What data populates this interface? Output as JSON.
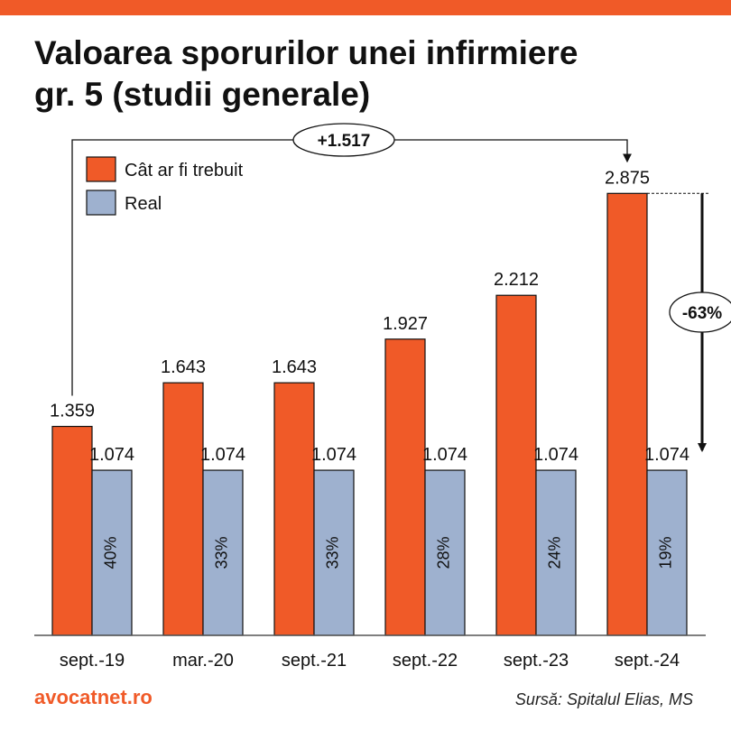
{
  "header": {
    "title_line1": "Valoarea sporurilor unei infirmiere",
    "title_line2": "gr. 5 (studii generale)"
  },
  "footer": {
    "brand": "avocatnet.ro",
    "source": "Sursă: Spitalul Elias, MS"
  },
  "colors": {
    "accent": "#f05a28",
    "real": "#9eb1cf",
    "text": "#111111"
  },
  "chart_data": {
    "type": "bar",
    "title": "Valoarea sporurilor unei infirmiere gr. 5 (studii generale)",
    "categories": [
      "sept.-19",
      "mar.-20",
      "sept.-21",
      "sept.-22",
      "sept.-23",
      "sept.-24"
    ],
    "series": [
      {
        "name": "Cât ar fi trebuit",
        "color": "#f05a28",
        "values": [
          1359,
          1643,
          1643,
          1927,
          2212,
          2875
        ],
        "labels": [
          "1.359",
          "1.643",
          "1.643",
          "1.927",
          "2.212",
          "2.875"
        ]
      },
      {
        "name": "Real",
        "color": "#9eb1cf",
        "values": [
          1074,
          1074,
          1074,
          1074,
          1074,
          1074
        ],
        "labels": [
          "1.074",
          "1.074",
          "1.074",
          "1.074",
          "1.074",
          "1.074"
        ],
        "inner_labels": [
          "40%",
          "33%",
          "33%",
          "28%",
          "24%",
          "19%"
        ]
      }
    ],
    "ylim": [
      0,
      3000
    ],
    "legend_position": "top-left",
    "grid": false,
    "annotations": {
      "difference": "+1.517",
      "decrease": "-63%"
    }
  }
}
